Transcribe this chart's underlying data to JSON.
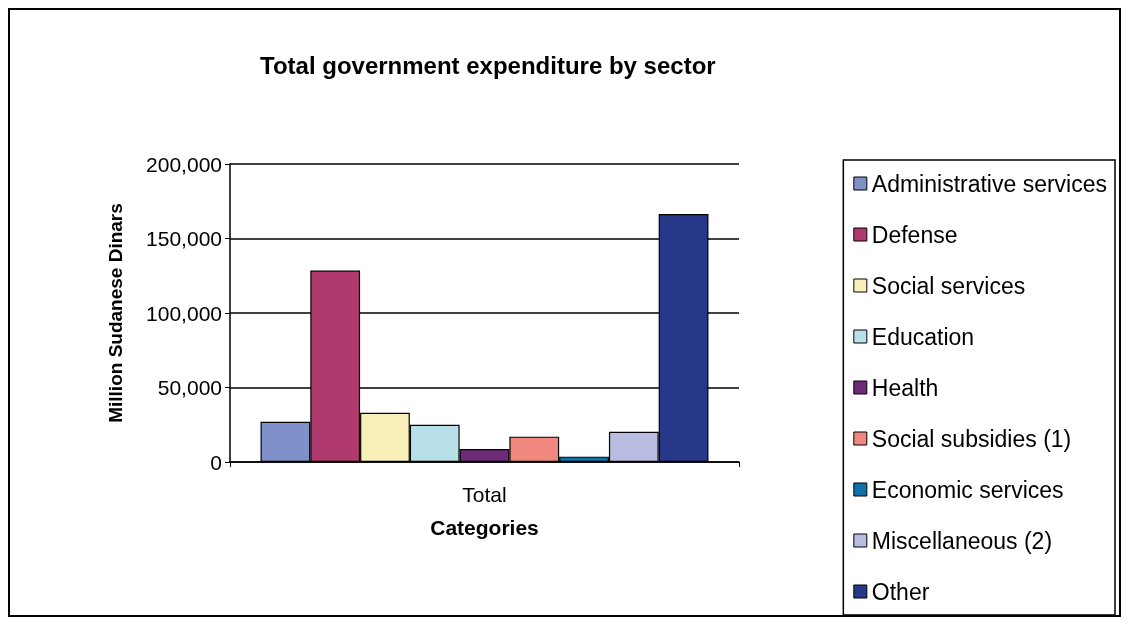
{
  "chart_data": {
    "type": "bar",
    "title": "Total government expenditure by sector",
    "xlabel": "Categories",
    "ylabel": "Million Sudanese Dinars",
    "categories": [
      "Total"
    ],
    "series": [
      {
        "name": "Administrative services",
        "color": "#8090c8",
        "values": [
          27000
        ]
      },
      {
        "name": "Defense",
        "color": "#b03a6e",
        "values": [
          128500
        ]
      },
      {
        "name": "Social services",
        "color": "#f8f0b8",
        "values": [
          33000
        ]
      },
      {
        "name": "Education",
        "color": "#b8e0e8",
        "values": [
          25000
        ]
      },
      {
        "name": "Health",
        "color": "#6e2a78",
        "values": [
          8700
        ]
      },
      {
        "name": "Social subsidies (1)",
        "color": "#f08880",
        "values": [
          17000
        ]
      },
      {
        "name": "Economic services",
        "color": "#1070a8",
        "values": [
          3600
        ]
      },
      {
        "name": "Miscellaneous (2)",
        "color": "#b8bce0",
        "values": [
          20300
        ]
      },
      {
        "name": "Other",
        "color": "#283888",
        "values": [
          166400
        ]
      }
    ],
    "ylim": [
      0,
      200000
    ],
    "yticks": [
      0,
      {
        "value": 50000,
        "label": "50,000"
      },
      {
        "value": 100000,
        "label": "100,000"
      },
      {
        "value": 150000,
        "label": "150,000"
      },
      {
        "value": 200000,
        "label": "200,000"
      }
    ],
    "grid": "y",
    "legend": "right"
  }
}
